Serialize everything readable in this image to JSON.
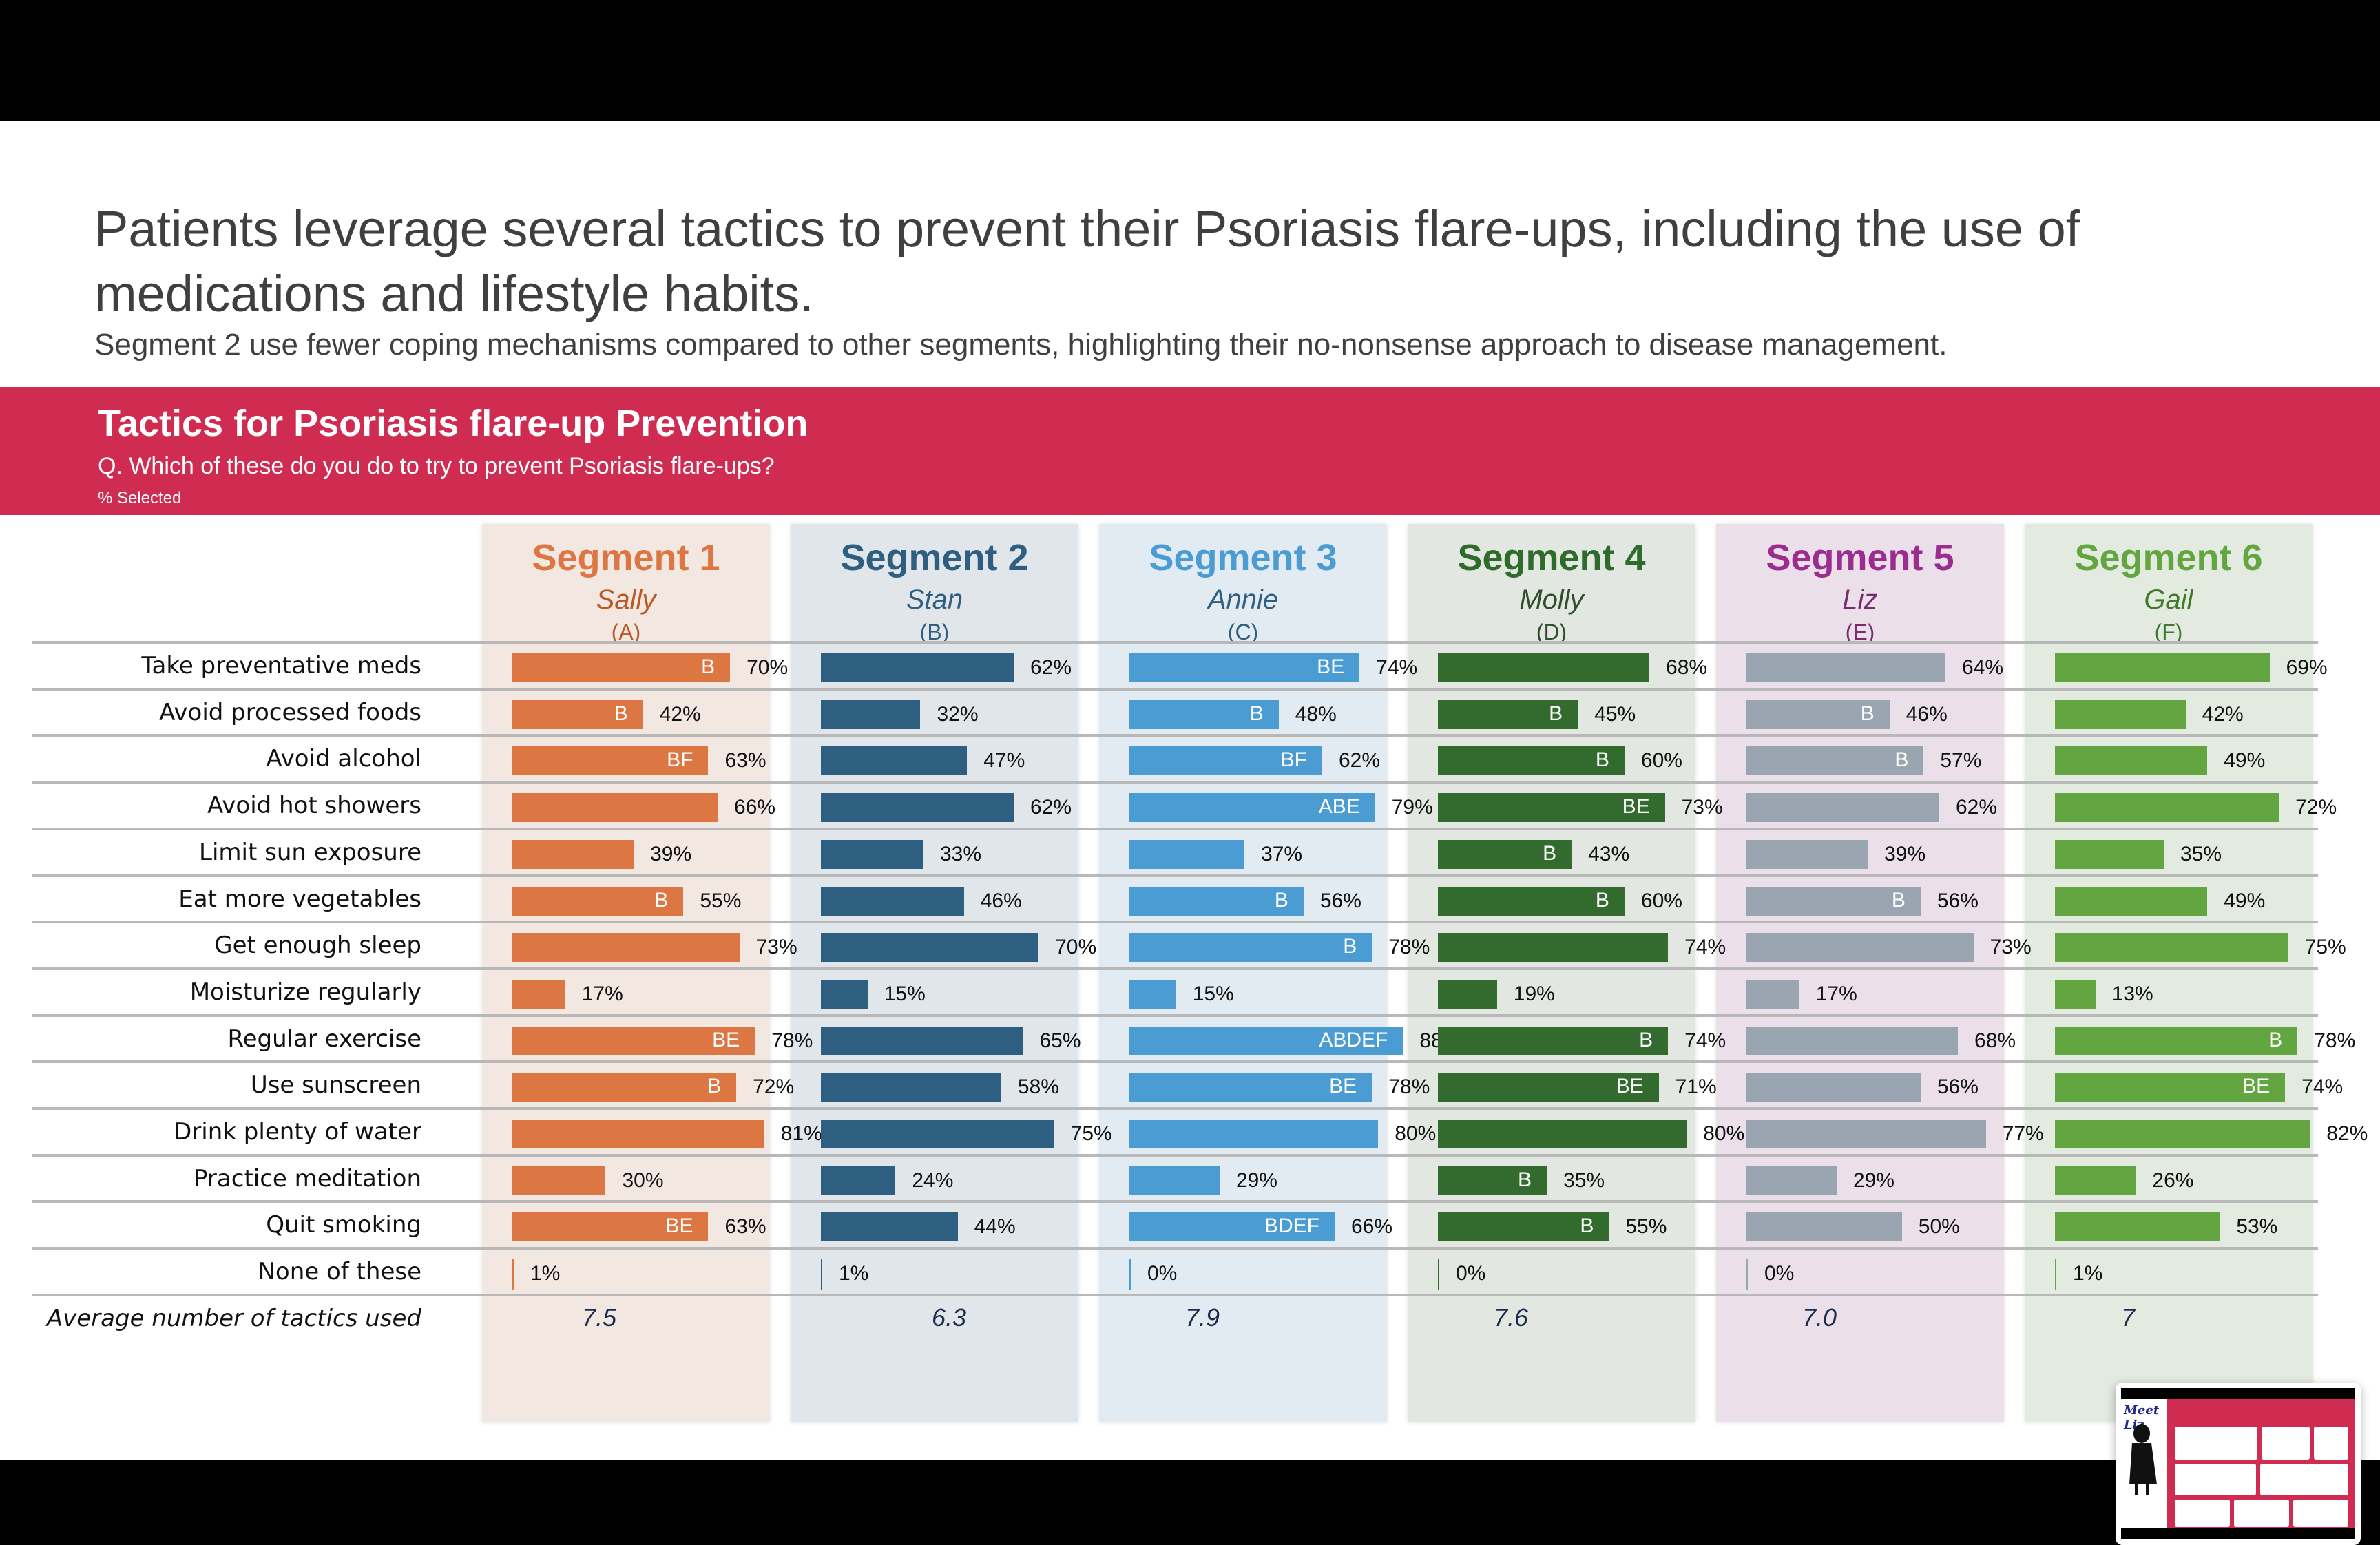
{
  "headline": "Patients leverage several tactics to prevent their Psoriasis flare-ups, including the use of medications and lifestyle habits.",
  "subheadline": "Segment 2 use fewer coping mechanisms compared to other segments, highlighting their no-nonsense approach to disease management.",
  "banner": {
    "title": "Tactics for Psoriasis flare-up Prevention",
    "question": "Q. Which of these do you do to try to prevent Psoriasis flare-ups?",
    "unit": "% Selected"
  },
  "thumbnail": {
    "title": "Meet Liz"
  },
  "chart_data": {
    "type": "bar",
    "title": "Tactics for Psoriasis flare-up Prevention",
    "subtitle": "Q. Which of these do you do to try to prevent Psoriasis flare-ups?",
    "unit": "% Selected",
    "categories": [
      "Take preventative meds",
      "Avoid processed foods",
      "Avoid alcohol",
      "Avoid hot showers",
      "Limit sun exposure",
      "Eat more vegetables",
      "Get enough sleep",
      "Moisturize regularly",
      "Regular exercise",
      "Use sunscreen",
      "Drink plenty of water",
      "Practice meditation",
      "Quit smoking",
      "None of these"
    ],
    "avg_label": "Average number of tactics used",
    "series": [
      {
        "name": "Segment 1",
        "persona": "Sally",
        "letter": "(A)",
        "color": "#dc7743",
        "bg": "#f2e7e1",
        "title_color": "#dc7743",
        "persona_color": "#b85a26",
        "values": [
          70,
          42,
          63,
          66,
          39,
          55,
          73,
          17,
          78,
          72,
          81,
          30,
          63,
          1
        ],
        "sig": [
          "B",
          "B",
          "BF",
          "",
          "",
          "B",
          "",
          "",
          "BE",
          "B",
          "",
          "",
          "BE",
          ""
        ],
        "average": "7.5"
      },
      {
        "name": "Segment 2",
        "persona": "Stan",
        "letter": "(B)",
        "color": "#2e5f80",
        "bg": "#e1e6ea",
        "title_color": "#2e5f80",
        "persona_color": "#2e5f80",
        "values": [
          62,
          32,
          47,
          62,
          33,
          46,
          70,
          15,
          65,
          58,
          75,
          24,
          44,
          1
        ],
        "sig": [
          "",
          "",
          "",
          "",
          "",
          "",
          "",
          "",
          "",
          "",
          "",
          "",
          "",
          ""
        ],
        "average": "6.3"
      },
      {
        "name": "Segment 3",
        "persona": "Annie",
        "letter": "(C)",
        "color": "#4a9cd2",
        "bg": "#e1ebf1",
        "title_color": "#4a9cd2",
        "persona_color": "#2e5f80",
        "values": [
          74,
          48,
          62,
          79,
          37,
          56,
          78,
          15,
          88,
          78,
          80,
          29,
          66,
          0
        ],
        "sig": [
          "BE",
          "B",
          "BF",
          "ABE",
          "",
          "B",
          "B",
          "",
          "ABDEF",
          "BE",
          "",
          "",
          "BDEF",
          ""
        ],
        "average": "7.9"
      },
      {
        "name": "Segment 4",
        "persona": "Molly",
        "letter": "(D)",
        "color": "#336b2f",
        "bg": "#e2e7e1",
        "title_color": "#2f6b2b",
        "persona_color": "#2f4f2b",
        "values": [
          68,
          45,
          60,
          73,
          43,
          60,
          74,
          19,
          74,
          71,
          80,
          35,
          55,
          0
        ],
        "sig": [
          "",
          "B",
          "B",
          "BE",
          "B",
          "B",
          "",
          "",
          "B",
          "BE",
          "",
          "B",
          "B",
          ""
        ],
        "average": "7.6"
      },
      {
        "name": "Segment 5",
        "persona": "Liz",
        "letter": "(E)",
        "color": "#9aa5b2",
        "bg": "#ebe0e9",
        "title_color": "#9b2d8e",
        "persona_color": "#7a2a6e",
        "values": [
          64,
          46,
          57,
          62,
          39,
          56,
          73,
          17,
          68,
          56,
          77,
          29,
          50,
          0
        ],
        "sig": [
          "",
          "B",
          "B",
          "",
          "",
          "B",
          "",
          "",
          "",
          "",
          "",
          "",
          "",
          ""
        ],
        "average": "7.0"
      },
      {
        "name": "Segment 6",
        "persona": "Gail",
        "letter": "(F)",
        "color": "#63a540",
        "bg": "#e3eae0",
        "title_color": "#63a540",
        "persona_color": "#3f7a2a",
        "values": [
          69,
          42,
          49,
          72,
          35,
          49,
          75,
          13,
          78,
          74,
          82,
          26,
          53,
          1
        ],
        "sig": [
          "",
          "",
          "",
          "",
          "",
          "",
          "",
          "",
          "B",
          "BE",
          "",
          "",
          "",
          ""
        ],
        "average": "7"
      }
    ]
  }
}
